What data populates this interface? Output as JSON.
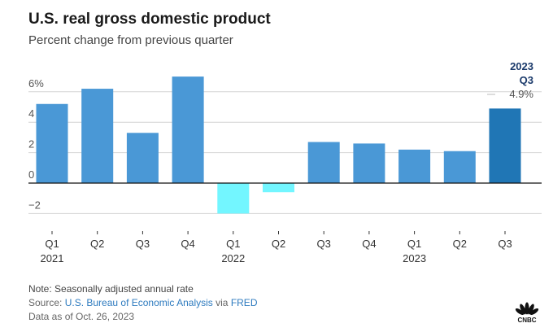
{
  "header": {
    "title": "U.S. real gross domestic product",
    "subtitle": "Percent change from previous quarter"
  },
  "callout": {
    "year": "2023",
    "quarter": "Q3",
    "value": "4.9%"
  },
  "chart_data": {
    "type": "bar",
    "title": "U.S. real gross domestic product",
    "subtitle": "Percent change from previous quarter",
    "categories": [
      "Q1 2021",
      "Q2 2021",
      "Q3 2021",
      "Q4 2021",
      "Q1 2022",
      "Q2 2022",
      "Q3 2022",
      "Q4 2022",
      "Q1 2023",
      "Q2 2023",
      "Q3 2023"
    ],
    "tick_labels": [
      [
        "Q1",
        "2021"
      ],
      [
        "Q2",
        ""
      ],
      [
        "Q3",
        ""
      ],
      [
        "Q4",
        ""
      ],
      [
        "Q1",
        "2022"
      ],
      [
        "Q2",
        ""
      ],
      [
        "Q3",
        ""
      ],
      [
        "Q4",
        ""
      ],
      [
        "Q1",
        "2023"
      ],
      [
        "Q2",
        ""
      ],
      [
        "Q3",
        ""
      ]
    ],
    "values": [
      5.2,
      6.2,
      3.3,
      7.0,
      -2.0,
      -0.6,
      2.7,
      2.6,
      2.2,
      2.1,
      4.9
    ],
    "yticks": [
      {
        "v": 6,
        "label": "6%"
      },
      {
        "v": 4,
        "label": "4"
      },
      {
        "v": 2,
        "label": "2"
      },
      {
        "v": 0,
        "label": "0"
      },
      {
        "v": -2,
        "label": "−2"
      }
    ],
    "ylim": [
      -2,
      6
    ],
    "xlabel": "",
    "ylabel": "",
    "grid": true,
    "colors": {
      "positive": "#4a98d6",
      "negative": "#73f6ff",
      "highlight": "#2076b5"
    },
    "highlight_index": 10
  },
  "footer": {
    "note": "Note: Seasonally adjusted annual rate",
    "source_prefix": "Source: ",
    "source_link": "U.S. Bureau of Economic Analysis",
    "source_via": " via ",
    "source_link2": "FRED",
    "data_as_of": "Data as of Oct. 26, 2023"
  },
  "logo": {
    "name": "CNBC",
    "text": "CNBC"
  }
}
